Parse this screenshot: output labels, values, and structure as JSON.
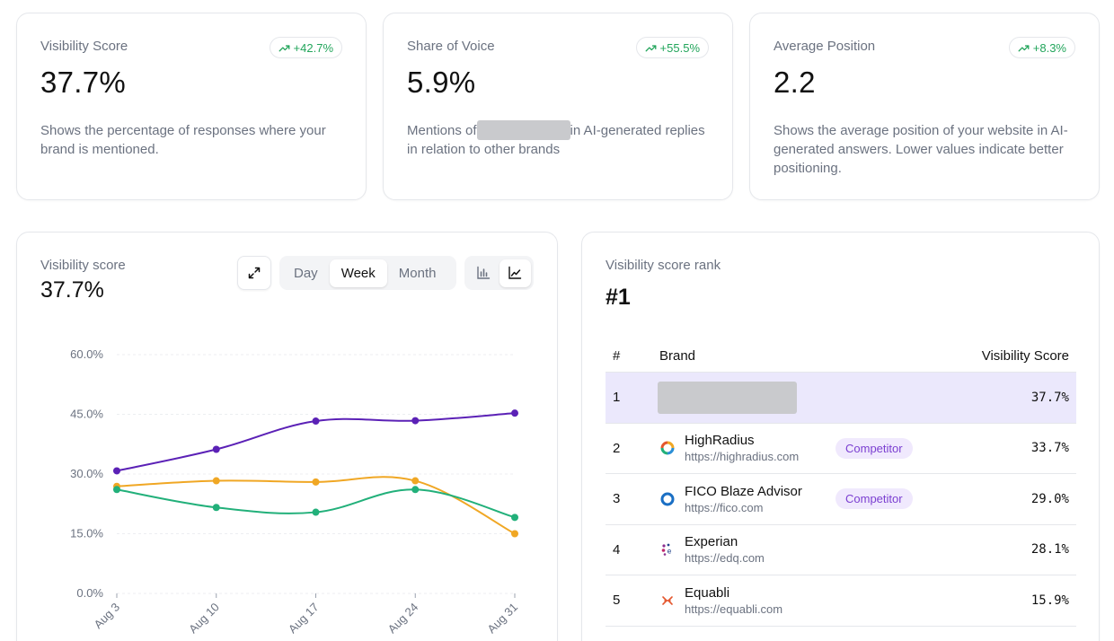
{
  "metrics": [
    {
      "label": "Visibility Score",
      "value": "37.7%",
      "trend": "+42.7%",
      "description": "Shows the percentage of responses where your brand is mentioned."
    },
    {
      "label": "Share of Voice",
      "value": "5.9%",
      "trend": "+55.5%",
      "description_prefix": "Mentions of",
      "description_suffix": "in AI-generated replies in relation to other brands"
    },
    {
      "label": "Average Position",
      "value": "2.2",
      "trend": "+8.3%",
      "description": "Shows the average position of your website in AI-generated answers. Lower values indicate better positioning."
    }
  ],
  "chart_panel": {
    "label": "Visibility score",
    "value": "37.7%",
    "ranges": [
      "Day",
      "Week",
      "Month"
    ],
    "active_range": "Week",
    "active_chart_type": "line"
  },
  "chart_data": {
    "type": "line",
    "categories": [
      "Aug 3",
      "Aug 10",
      "Aug 17",
      "Aug 24",
      "Aug 31"
    ],
    "yticks": [
      "0.0%",
      "15.0%",
      "30.0%",
      "45.0%",
      "60.0%"
    ],
    "ylim": [
      0,
      60
    ],
    "grid": true,
    "series": [
      {
        "color": "#5b21b6",
        "values": [
          30.8,
          36.2,
          43.3,
          43.4,
          45.3
        ]
      },
      {
        "color": "#f0a724",
        "values": [
          26.9,
          28.3,
          28.0,
          28.3,
          15.0
        ]
      },
      {
        "color": "#22b07a",
        "values": [
          26.1,
          21.6,
          20.4,
          26.1,
          19.1
        ]
      }
    ]
  },
  "rank_panel": {
    "label": "Visibility score rank",
    "value": "#1",
    "headers": {
      "num": "#",
      "brand": "Brand",
      "score": "Visibility Score"
    },
    "rows": [
      {
        "num": "1",
        "name": "",
        "url": "",
        "badge": "",
        "score": "37.7%",
        "logo": "redacted"
      },
      {
        "num": "2",
        "name": "HighRadius",
        "url": "https://highradius.com",
        "badge": "Competitor",
        "score": "33.7%",
        "logo": "highradius-logo-icon"
      },
      {
        "num": "3",
        "name": "FICO Blaze Advisor",
        "url": "https://fico.com",
        "badge": "Competitor",
        "score": "29.0%",
        "logo": "fico-logo-icon"
      },
      {
        "num": "4",
        "name": "Experian",
        "url": "https://edq.com",
        "badge": "",
        "score": "28.1%",
        "logo": "experian-logo-icon"
      },
      {
        "num": "5",
        "name": "Equabli",
        "url": "https://equabli.com",
        "badge": "",
        "score": "15.9%",
        "logo": "equabli-logo-icon"
      }
    ]
  }
}
